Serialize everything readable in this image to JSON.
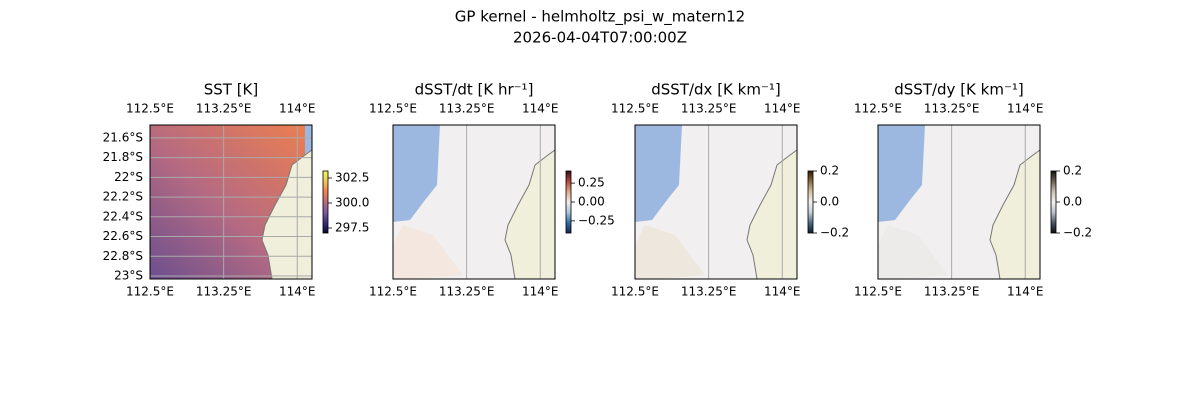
{
  "figure": {
    "title": "GP kernel - helmholtz_psi_w_matern12",
    "subtitle": "2026-04-04T07:00:00Z"
  },
  "chart_data": [
    {
      "type": "map",
      "title": "SST [K]",
      "xlim": [
        112.5,
        114.15
      ],
      "ylim": [
        -23.03,
        -21.47
      ],
      "xticks": [
        {
          "value": 112.5,
          "label": "112.5°E"
        },
        {
          "value": 113.25,
          "label": "113.25°E"
        },
        {
          "value": 114,
          "label": "114°E"
        }
      ],
      "yticks": [
        {
          "value": -21.6,
          "label": "21.6°S"
        },
        {
          "value": -21.8,
          "label": "21.8°S"
        },
        {
          "value": -22,
          "label": "22°S"
        },
        {
          "value": -22.2,
          "label": "22.2°S"
        },
        {
          "value": -22.4,
          "label": "22.4°S"
        },
        {
          "value": -22.6,
          "label": "22.6°S"
        },
        {
          "value": -22.8,
          "label": "22.8°S"
        },
        {
          "value": -23,
          "label": "23°S"
        }
      ],
      "clim": [
        297.0,
        303.2
      ],
      "cticks": [
        302.5,
        {
          "value": 300,
          "label": "300.0"
        },
        297.5
      ],
      "colormap": [
        "#04082e",
        "#3b2f80",
        "#7b5a9e",
        "#c16b7e",
        "#ef8450",
        "#f5c75a",
        "#e8fa5b"
      ]
    },
    {
      "type": "map",
      "title": "dSST/dt [K hr⁻¹]",
      "xlim": [
        112.5,
        114.15
      ],
      "ylim": [
        -23.03,
        -21.47
      ],
      "xticks": [
        {
          "value": 112.5,
          "label": "112.5°E"
        },
        {
          "value": 113.25,
          "label": "113.25°E"
        },
        {
          "value": 114,
          "label": "114°E"
        }
      ],
      "clim": [
        -0.41,
        0.41
      ],
      "cticks": [
        0.25,
        {
          "value": 0,
          "label": "0.00"
        },
        {
          "value": -0.25,
          "label": "−0.25"
        }
      ],
      "colormap": [
        "#172356",
        "#2f6fa8",
        "#a9c7d9",
        "#f1eeec",
        "#e3a88b",
        "#b5463a",
        "#3c0912"
      ]
    },
    {
      "type": "map",
      "title": "dSST/dx [K km⁻¹]",
      "xlim": [
        112.5,
        114.15
      ],
      "ylim": [
        -23.03,
        -21.47
      ],
      "xticks": [
        {
          "value": 112.5,
          "label": "112.5°E"
        },
        {
          "value": 113.25,
          "label": "113.25°E"
        },
        {
          "value": 114,
          "label": "114°E"
        }
      ],
      "clim": [
        -0.2,
        0.2
      ],
      "cticks": [
        0.2,
        {
          "value": 0,
          "label": "0.0"
        },
        {
          "value": -0.2,
          "label": "−0.2"
        }
      ],
      "colormap": [
        "#081d2f",
        "#4d6f86",
        "#c6d0d6",
        "#f2f0ef",
        "#d4c3a6",
        "#8f6c3b",
        "#2d1a06"
      ]
    },
    {
      "type": "map",
      "title": "dSST/dy [K km⁻¹]",
      "xlim": [
        112.5,
        114.15
      ],
      "ylim": [
        -23.03,
        -21.47
      ],
      "xticks": [
        {
          "value": 112.5,
          "label": "112.5°E"
        },
        {
          "value": 113.25,
          "label": "113.25°E"
        },
        {
          "value": 114,
          "label": "114°E"
        }
      ],
      "clim": [
        -0.2,
        0.2
      ],
      "cticks": [
        0.2,
        {
          "value": 0,
          "label": "0.0"
        },
        {
          "value": -0.2,
          "label": "−0.2"
        }
      ],
      "colormap": [
        "#0b0b0b",
        "#4d5866",
        "#bcc4cb",
        "#f3f2f1",
        "#c9c3b5",
        "#6b6450",
        "#111111"
      ]
    }
  ]
}
